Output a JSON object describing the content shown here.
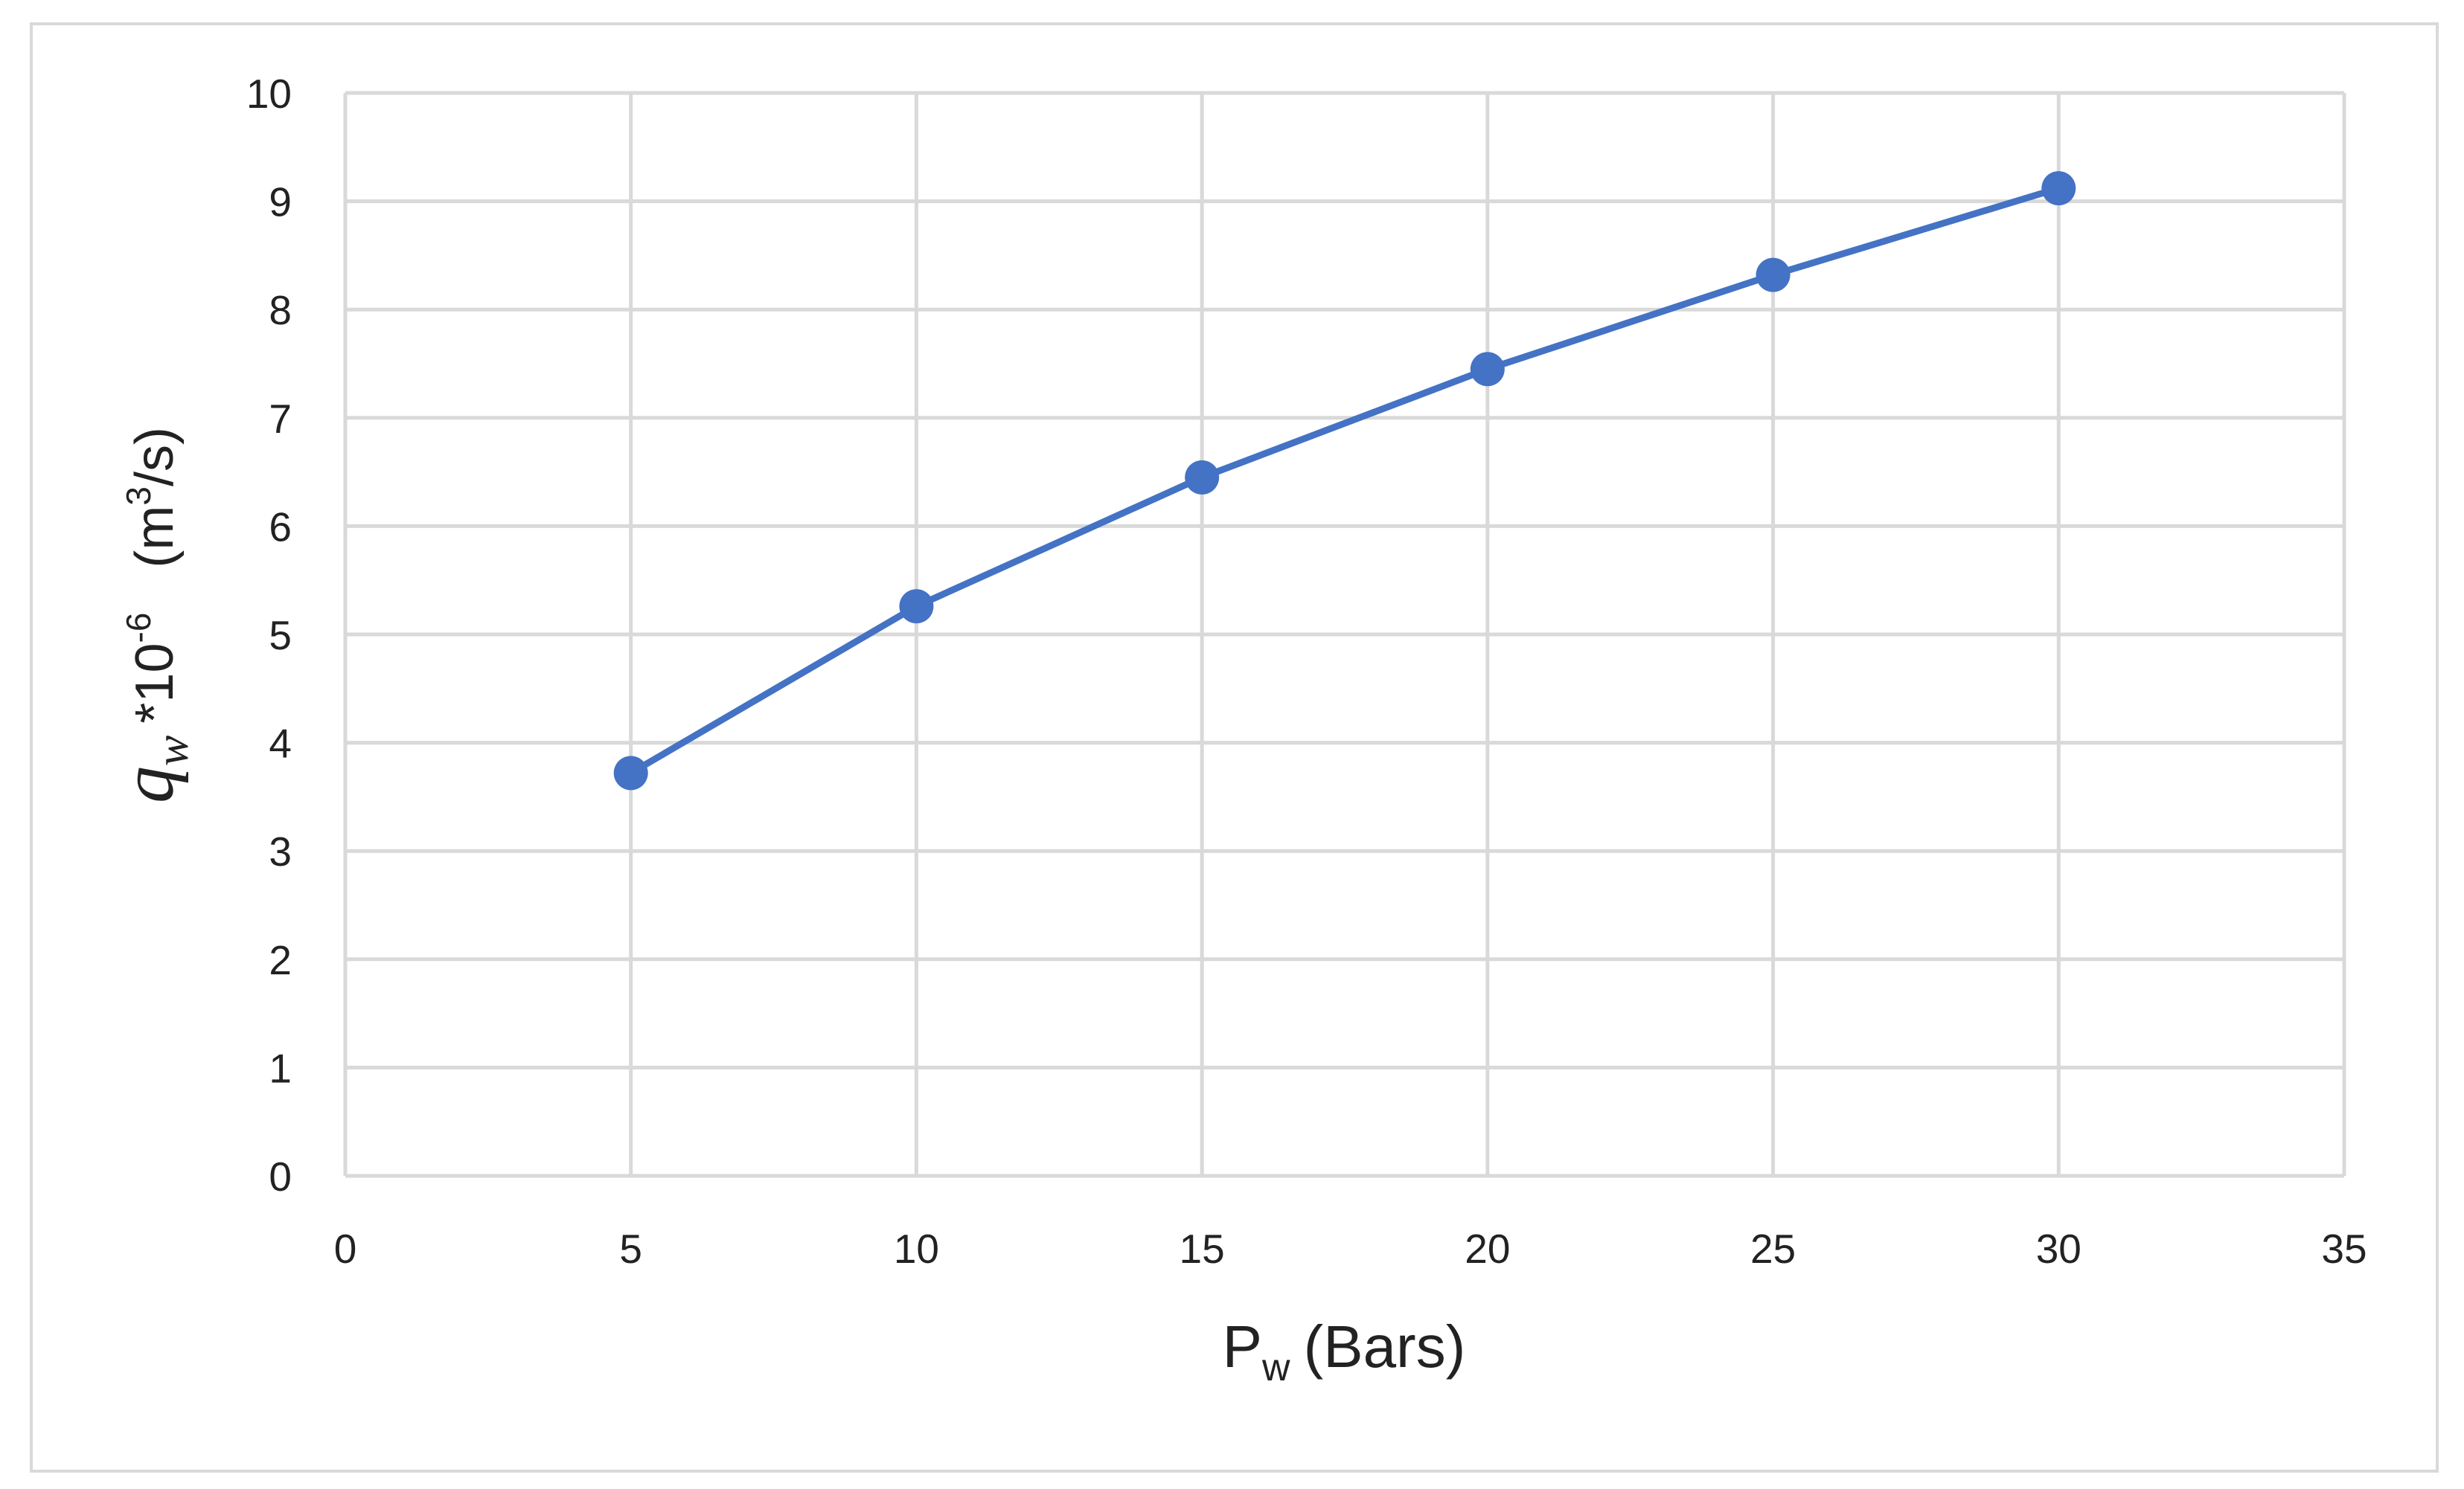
{
  "chart_data": {
    "type": "line",
    "x": [
      5,
      10,
      15,
      20,
      25,
      30
    ],
    "series": [
      {
        "color": "#4472c4",
        "values": [
          3.72,
          5.26,
          6.45,
          7.45,
          8.32,
          9.12
        ]
      }
    ],
    "xlim": [
      0,
      35
    ],
    "xticks": [
      0,
      5,
      10,
      15,
      20,
      25,
      30,
      35
    ],
    "ylim": [
      0,
      10
    ],
    "yticks": [
      0,
      1,
      2,
      3,
      4,
      5,
      6,
      7,
      8,
      9,
      10
    ],
    "grid": true,
    "x_label_parts": [
      "P",
      "w",
      "(Bars)"
    ],
    "y_label_parts": [
      "q",
      "w",
      "*10",
      "-6",
      "(m",
      "3",
      "/s)"
    ]
  }
}
